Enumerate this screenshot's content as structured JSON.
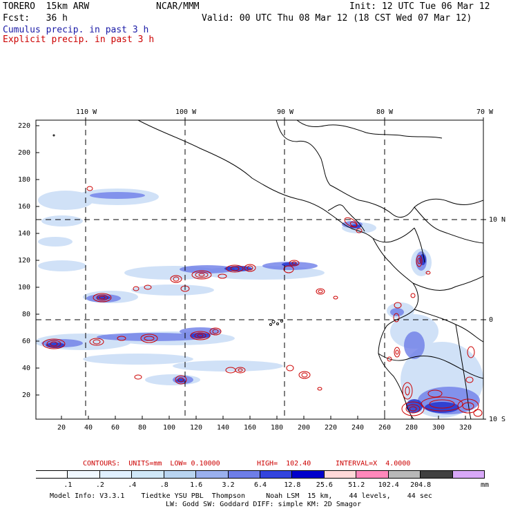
{
  "header": {
    "model": "TORERO  15km ARW",
    "org": "NCAR/MMM",
    "init": "Init: 12 UTC Tue 06 Mar 12",
    "fcst": "Fcst:   36 h",
    "valid": "Valid: 00 UTC Thu 08 Mar 12 (18 CST Wed 07 Mar 12)",
    "legend_cumulus": "Cumulus precip. in past 3 h",
    "legend_explicit": "Explicit precip. in past 3 h"
  },
  "colors": {
    "cumulus": "#1a1aa6",
    "explicit": "#cc0000",
    "grid": "#000000"
  },
  "map_axes": {
    "top_lon_labels": [
      "110 W",
      "100 W",
      "90 W",
      "80 W",
      "70 W"
    ],
    "right_lat_labels": [
      "10 N",
      "0",
      "10 S"
    ],
    "left_y_ticks": [
      "220",
      "200",
      "180",
      "160",
      "140",
      "120",
      "100",
      "80",
      "60",
      "40",
      "20"
    ],
    "bottom_x_ticks": [
      "20",
      "40",
      "60",
      "80",
      "100",
      "120",
      "140",
      "160",
      "180",
      "200",
      "220",
      "240",
      "260",
      "280",
      "300",
      "320"
    ]
  },
  "contour_info": {
    "units_label": "CONTOURS:  UNITS=mm  LOW= 0.10000",
    "high_label": "HIGH=  102.40",
    "interval_label": "INTERVAL=X  4.0000"
  },
  "colorbar": {
    "colors": [
      "#ffffff",
      "#f0f8ff",
      "#e0f0ff",
      "#d0e8f8",
      "#b8d4f0",
      "#9ab0ee",
      "#6e7ee8",
      "#3344dd",
      "#0000cc",
      "#ffd8d8",
      "#ff88bb",
      "#b8b8b8",
      "#404040",
      "#d8a8f8"
    ],
    "labels": [
      ".1",
      ".2",
      ".4",
      ".8",
      "1.6",
      "3.2",
      "6.4",
      "12.8",
      "25.6",
      "51.2",
      "102.4",
      "204.8"
    ],
    "unit": "mm"
  },
  "footer": {
    "line1": "Model Info: V3.3.1    Tiedtke YSU PBL  Thompson     Noah LSM  15 km,    44 levels,    44 sec",
    "line2": "LW: Godd SW: Goddard DIFF: simple KM: 2D Smagor"
  }
}
